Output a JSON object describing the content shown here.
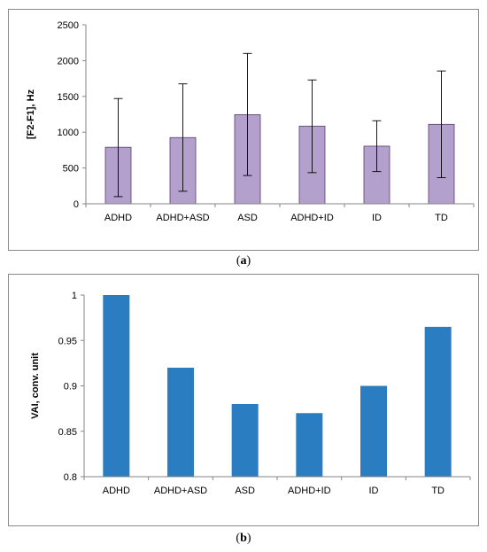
{
  "chart_data": [
    {
      "type": "bar",
      "categories": [
        "ADHD",
        "ADHD+ASD",
        "ASD",
        "ADHD+ID",
        "ID",
        "TD"
      ],
      "values": [
        790,
        925,
        1245,
        1085,
        805,
        1110
      ],
      "error_upper": [
        1470,
        1675,
        2100,
        1730,
        1160,
        1855
      ],
      "error_lower": [
        100,
        175,
        395,
        435,
        450,
        365
      ],
      "ylabel": "[F2-F1], Hz",
      "ylim": [
        0,
        2500
      ],
      "yticks": [
        "0",
        "500",
        "1000",
        "1500",
        "2000",
        "2500"
      ],
      "bar_color": "#b4a0cc",
      "grid": false
    },
    {
      "type": "bar",
      "categories": [
        "ADHD",
        "ADHD+ASD",
        "ASD",
        "ADHD+ID",
        "ID",
        "TD"
      ],
      "values": [
        1.0,
        0.92,
        0.88,
        0.87,
        0.9,
        0.965
      ],
      "ylabel": "VAI, conv. unit",
      "ylim": [
        0.8,
        1.0
      ],
      "yticks": [
        "0.8",
        "0.85",
        "0.9",
        "0.95",
        "1"
      ],
      "bar_color": "#2a7dc1",
      "grid": false
    }
  ],
  "captions": [
    {
      "open": "(",
      "letter": "a",
      "close": ")"
    },
    {
      "open": "(",
      "letter": "b",
      "close": ")"
    }
  ]
}
